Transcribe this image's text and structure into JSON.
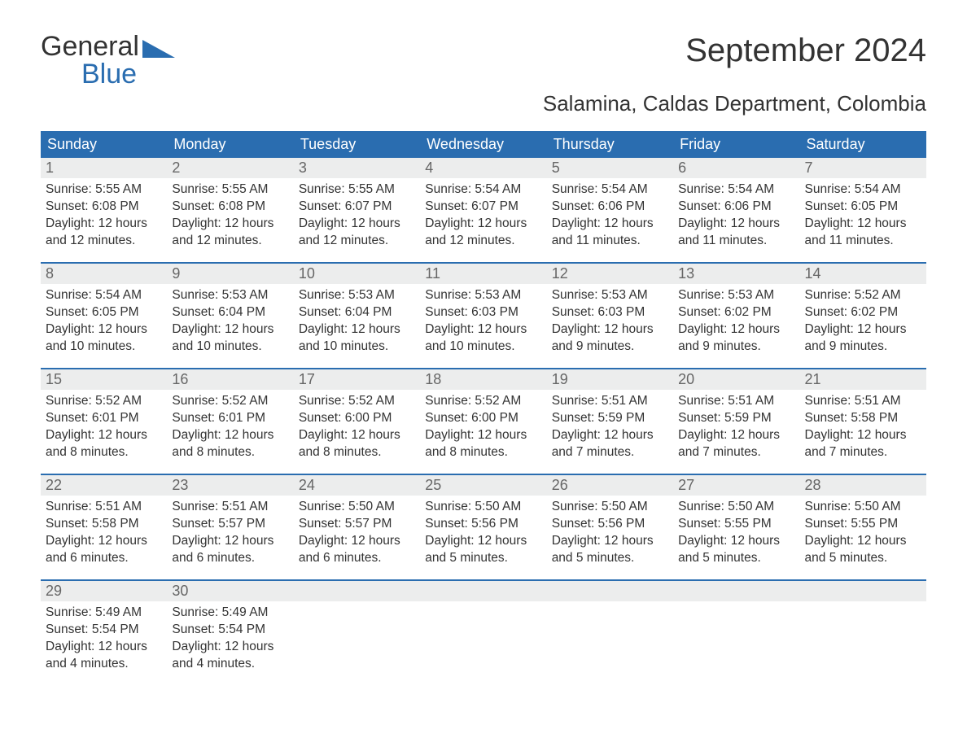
{
  "brand": {
    "name_part1": "General",
    "name_part2": "Blue",
    "brand_color": "#2a6db0",
    "text_color": "#333333"
  },
  "title": "September 2024",
  "location": "Salamina, Caldas Department, Colombia",
  "colors": {
    "header_bg": "#2a6db0",
    "header_text": "#ffffff",
    "daynum_bg": "#eceded",
    "daynum_text": "#666666",
    "body_text": "#333333",
    "page_bg": "#ffffff",
    "row_divider": "#2a6db0"
  },
  "typography": {
    "title_fontsize": 40,
    "subtitle_fontsize": 26,
    "header_fontsize": 18,
    "body_fontsize": 15.5
  },
  "day_labels": [
    "Sunday",
    "Monday",
    "Tuesday",
    "Wednesday",
    "Thursday",
    "Friday",
    "Saturday"
  ],
  "calendar": {
    "type": "table",
    "columns": 7,
    "rows": 5,
    "weeks": [
      [
        {
          "day": "1",
          "sunrise": "Sunrise: 5:55 AM",
          "sunset": "Sunset: 6:08 PM",
          "daylight1": "Daylight: 12 hours",
          "daylight2": "and 12 minutes."
        },
        {
          "day": "2",
          "sunrise": "Sunrise: 5:55 AM",
          "sunset": "Sunset: 6:08 PM",
          "daylight1": "Daylight: 12 hours",
          "daylight2": "and 12 minutes."
        },
        {
          "day": "3",
          "sunrise": "Sunrise: 5:55 AM",
          "sunset": "Sunset: 6:07 PM",
          "daylight1": "Daylight: 12 hours",
          "daylight2": "and 12 minutes."
        },
        {
          "day": "4",
          "sunrise": "Sunrise: 5:54 AM",
          "sunset": "Sunset: 6:07 PM",
          "daylight1": "Daylight: 12 hours",
          "daylight2": "and 12 minutes."
        },
        {
          "day": "5",
          "sunrise": "Sunrise: 5:54 AM",
          "sunset": "Sunset: 6:06 PM",
          "daylight1": "Daylight: 12 hours",
          "daylight2": "and 11 minutes."
        },
        {
          "day": "6",
          "sunrise": "Sunrise: 5:54 AM",
          "sunset": "Sunset: 6:06 PM",
          "daylight1": "Daylight: 12 hours",
          "daylight2": "and 11 minutes."
        },
        {
          "day": "7",
          "sunrise": "Sunrise: 5:54 AM",
          "sunset": "Sunset: 6:05 PM",
          "daylight1": "Daylight: 12 hours",
          "daylight2": "and 11 minutes."
        }
      ],
      [
        {
          "day": "8",
          "sunrise": "Sunrise: 5:54 AM",
          "sunset": "Sunset: 6:05 PM",
          "daylight1": "Daylight: 12 hours",
          "daylight2": "and 10 minutes."
        },
        {
          "day": "9",
          "sunrise": "Sunrise: 5:53 AM",
          "sunset": "Sunset: 6:04 PM",
          "daylight1": "Daylight: 12 hours",
          "daylight2": "and 10 minutes."
        },
        {
          "day": "10",
          "sunrise": "Sunrise: 5:53 AM",
          "sunset": "Sunset: 6:04 PM",
          "daylight1": "Daylight: 12 hours",
          "daylight2": "and 10 minutes."
        },
        {
          "day": "11",
          "sunrise": "Sunrise: 5:53 AM",
          "sunset": "Sunset: 6:03 PM",
          "daylight1": "Daylight: 12 hours",
          "daylight2": "and 10 minutes."
        },
        {
          "day": "12",
          "sunrise": "Sunrise: 5:53 AM",
          "sunset": "Sunset: 6:03 PM",
          "daylight1": "Daylight: 12 hours",
          "daylight2": "and 9 minutes."
        },
        {
          "day": "13",
          "sunrise": "Sunrise: 5:53 AM",
          "sunset": "Sunset: 6:02 PM",
          "daylight1": "Daylight: 12 hours",
          "daylight2": "and 9 minutes."
        },
        {
          "day": "14",
          "sunrise": "Sunrise: 5:52 AM",
          "sunset": "Sunset: 6:02 PM",
          "daylight1": "Daylight: 12 hours",
          "daylight2": "and 9 minutes."
        }
      ],
      [
        {
          "day": "15",
          "sunrise": "Sunrise: 5:52 AM",
          "sunset": "Sunset: 6:01 PM",
          "daylight1": "Daylight: 12 hours",
          "daylight2": "and 8 minutes."
        },
        {
          "day": "16",
          "sunrise": "Sunrise: 5:52 AM",
          "sunset": "Sunset: 6:01 PM",
          "daylight1": "Daylight: 12 hours",
          "daylight2": "and 8 minutes."
        },
        {
          "day": "17",
          "sunrise": "Sunrise: 5:52 AM",
          "sunset": "Sunset: 6:00 PM",
          "daylight1": "Daylight: 12 hours",
          "daylight2": "and 8 minutes."
        },
        {
          "day": "18",
          "sunrise": "Sunrise: 5:52 AM",
          "sunset": "Sunset: 6:00 PM",
          "daylight1": "Daylight: 12 hours",
          "daylight2": "and 8 minutes."
        },
        {
          "day": "19",
          "sunrise": "Sunrise: 5:51 AM",
          "sunset": "Sunset: 5:59 PM",
          "daylight1": "Daylight: 12 hours",
          "daylight2": "and 7 minutes."
        },
        {
          "day": "20",
          "sunrise": "Sunrise: 5:51 AM",
          "sunset": "Sunset: 5:59 PM",
          "daylight1": "Daylight: 12 hours",
          "daylight2": "and 7 minutes."
        },
        {
          "day": "21",
          "sunrise": "Sunrise: 5:51 AM",
          "sunset": "Sunset: 5:58 PM",
          "daylight1": "Daylight: 12 hours",
          "daylight2": "and 7 minutes."
        }
      ],
      [
        {
          "day": "22",
          "sunrise": "Sunrise: 5:51 AM",
          "sunset": "Sunset: 5:58 PM",
          "daylight1": "Daylight: 12 hours",
          "daylight2": "and 6 minutes."
        },
        {
          "day": "23",
          "sunrise": "Sunrise: 5:51 AM",
          "sunset": "Sunset: 5:57 PM",
          "daylight1": "Daylight: 12 hours",
          "daylight2": "and 6 minutes."
        },
        {
          "day": "24",
          "sunrise": "Sunrise: 5:50 AM",
          "sunset": "Sunset: 5:57 PM",
          "daylight1": "Daylight: 12 hours",
          "daylight2": "and 6 minutes."
        },
        {
          "day": "25",
          "sunrise": "Sunrise: 5:50 AM",
          "sunset": "Sunset: 5:56 PM",
          "daylight1": "Daylight: 12 hours",
          "daylight2": "and 5 minutes."
        },
        {
          "day": "26",
          "sunrise": "Sunrise: 5:50 AM",
          "sunset": "Sunset: 5:56 PM",
          "daylight1": "Daylight: 12 hours",
          "daylight2": "and 5 minutes."
        },
        {
          "day": "27",
          "sunrise": "Sunrise: 5:50 AM",
          "sunset": "Sunset: 5:55 PM",
          "daylight1": "Daylight: 12 hours",
          "daylight2": "and 5 minutes."
        },
        {
          "day": "28",
          "sunrise": "Sunrise: 5:50 AM",
          "sunset": "Sunset: 5:55 PM",
          "daylight1": "Daylight: 12 hours",
          "daylight2": "and 5 minutes."
        }
      ],
      [
        {
          "day": "29",
          "sunrise": "Sunrise: 5:49 AM",
          "sunset": "Sunset: 5:54 PM",
          "daylight1": "Daylight: 12 hours",
          "daylight2": "and 4 minutes."
        },
        {
          "day": "30",
          "sunrise": "Sunrise: 5:49 AM",
          "sunset": "Sunset: 5:54 PM",
          "daylight1": "Daylight: 12 hours",
          "daylight2": "and 4 minutes."
        },
        {
          "day": "",
          "sunrise": "",
          "sunset": "",
          "daylight1": "",
          "daylight2": "",
          "empty": true
        },
        {
          "day": "",
          "sunrise": "",
          "sunset": "",
          "daylight1": "",
          "daylight2": "",
          "empty": true
        },
        {
          "day": "",
          "sunrise": "",
          "sunset": "",
          "daylight1": "",
          "daylight2": "",
          "empty": true
        },
        {
          "day": "",
          "sunrise": "",
          "sunset": "",
          "daylight1": "",
          "daylight2": "",
          "empty": true
        },
        {
          "day": "",
          "sunrise": "",
          "sunset": "",
          "daylight1": "",
          "daylight2": "",
          "empty": true
        }
      ]
    ]
  }
}
